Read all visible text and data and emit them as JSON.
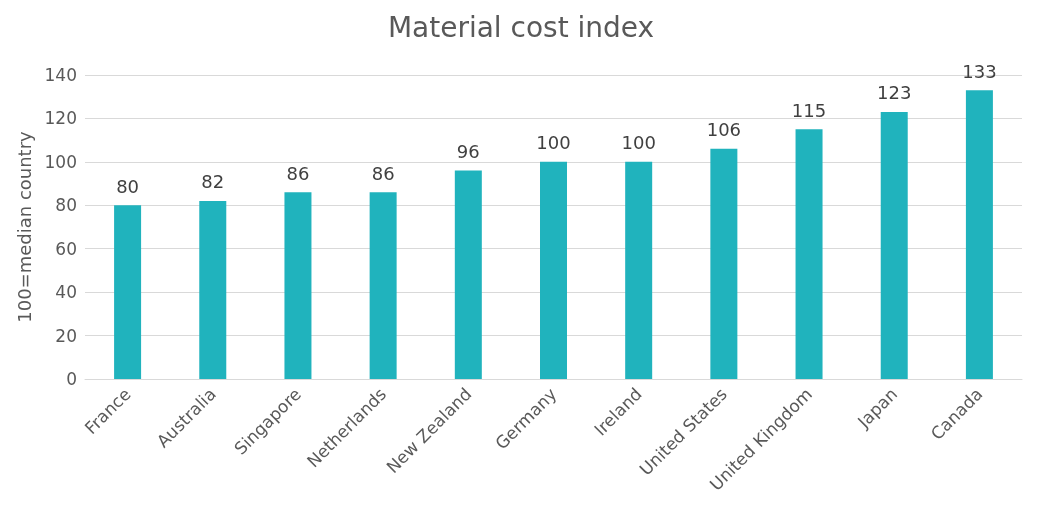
{
  "chart_data": {
    "type": "bar",
    "title": "Material cost index",
    "ylabel": "100=median country",
    "categories": [
      "France",
      "Australia",
      "Singapore",
      "Netherlands",
      "New Zealand",
      "Germany",
      "Ireland",
      "United States",
      "United Kingdom",
      "Japan",
      "Canada"
    ],
    "values": [
      80,
      82,
      86,
      86,
      96,
      100,
      100,
      106,
      115,
      123,
      133
    ],
    "color": "#20b3bd",
    "ylim": [
      0,
      140
    ],
    "yticks": [
      0,
      20,
      40,
      60,
      80,
      100,
      120,
      140
    ],
    "grid": "y",
    "data_labels": true
  }
}
